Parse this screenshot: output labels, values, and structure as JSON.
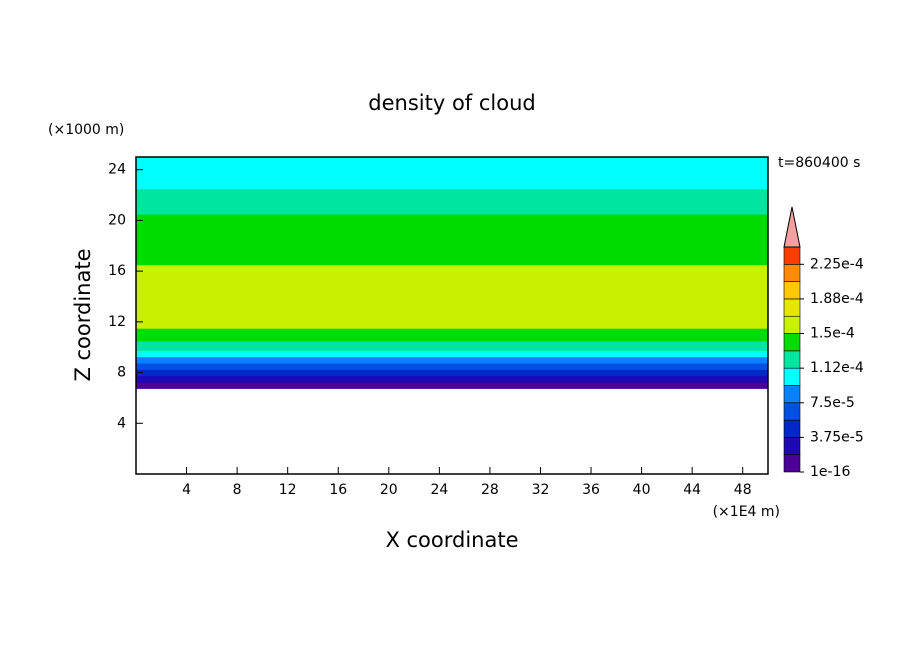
{
  "chart_data": {
    "type": "contour",
    "title": "density of cloud",
    "y_unit": "(×1000 m)",
    "x_unit": "(×1E4 m)",
    "time_label": "t=860400 s",
    "ylabel": "Z coordinate",
    "xlabel": "X coordinate",
    "xlim": [
      0,
      50
    ],
    "xticks": [
      4,
      8,
      12,
      16,
      20,
      24,
      28,
      32,
      36,
      40,
      44,
      48
    ],
    "ylim": [
      0,
      25
    ],
    "yticks": [
      4,
      8,
      12,
      16,
      20,
      24
    ],
    "z": [
      7,
      7.5,
      8,
      8.5,
      9,
      9.5,
      10,
      11,
      12,
      13,
      14,
      15,
      16,
      17,
      18,
      19,
      20,
      21,
      22,
      23,
      24,
      25
    ],
    "values": [
      1e-05,
      2.8e-05,
      4.5e-05,
      6.5e-05,
      8.5e-05,
      0.0001,
      0.000125,
      0.000145,
      0.000155,
      0.000155,
      0.000155,
      0.000155,
      0.000155,
      0.000145,
      0.000135,
      0.00014,
      0.000135,
      0.00012,
      0.000115,
      0.000105,
      0.0001,
      0.0001
    ],
    "levels": [
      1e-16,
      1.875e-05,
      3.75e-05,
      5.625e-05,
      7.5e-05,
      9.375e-05,
      0.0001125,
      0.00013125,
      0.00015,
      0.00016875,
      0.0001875,
      0.00020625,
      0.000225,
      0.00024375
    ],
    "colors": [
      "#4b0096",
      "#1e0ab4",
      "#0028c8",
      "#0050e6",
      "#0a82ff",
      "#00ffff",
      "#00e6a0",
      "#00dc00",
      "#c8f000",
      "#e6e600",
      "#ffc800",
      "#ff8c00",
      "#ff3c00"
    ],
    "extend_color": "#f4a0a0",
    "colorbar_ticks": [
      {
        "value": 1e-16,
        "label": "1e-16"
      },
      {
        "value": 3.75e-05,
        "label": "3.75e-5"
      },
      {
        "value": 7.5e-05,
        "label": "7.5e-5"
      },
      {
        "value": 0.0001125,
        "label": "1.12e-4"
      },
      {
        "value": 0.00015,
        "label": "1.5e-4"
      },
      {
        "value": 0.0001875,
        "label": "1.88e-4"
      },
      {
        "value": 0.000225,
        "label": "2.25e-4"
      }
    ]
  }
}
